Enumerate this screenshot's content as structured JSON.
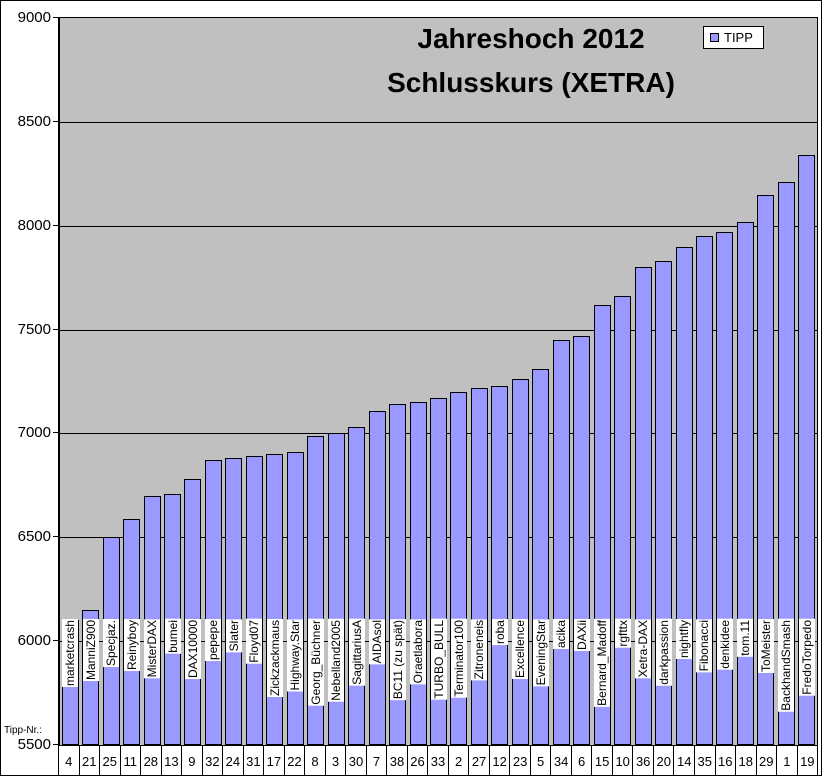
{
  "title": {
    "line1": "Jahreshoch 2012",
    "line2": "Schlusskurs (XETRA)"
  },
  "legend": {
    "label": "TIPP"
  },
  "axis": {
    "caption": "Tipp-Nr.:"
  },
  "colors": {
    "bar": "#9999ff",
    "plot_bg": "#c0c0c0",
    "grid": "#000000",
    "text": "#000000",
    "legend_bg": "#ffffff"
  },
  "chart_data": {
    "type": "bar",
    "title": "Jahreshoch 2012 Schlusskurs (XETRA)",
    "xlabel": "Tipp-Nr.:",
    "ylabel": "",
    "ylim": [
      5500,
      9000
    ],
    "yticks": [
      9000,
      8500,
      8000,
      7500,
      7000,
      6500,
      6000,
      5500
    ],
    "grid": true,
    "legend_position": "top-right",
    "series_name": "TIPP",
    "categories": [
      "marketcrash",
      "ManniZ900",
      "Specjaz.",
      "Reinyboy",
      "MisterDAX",
      "bumei",
      "DAX10000",
      "pepepe",
      "Slater",
      "Floyd07",
      "Zickzackmaus",
      "Highway.Star",
      "Georg_Büchner",
      "Nebelland2005",
      "SagittariusA",
      "AIDAsol",
      "BC11 (zu spät)",
      "Oraetlabora",
      "TURBO_BULL",
      "Terminator100",
      "Zitroneneis",
      "roba",
      "Excellence",
      "EveningStar",
      "acika",
      "DAXii",
      "Bernard_Madoff",
      "rgfttx",
      "Xetra-DAX",
      "darkpassion",
      "nightfly",
      "Fibonacci",
      "denkidee",
      "tom.11",
      "ToMeister",
      "BackhandSmash",
      "FredoTorpedo"
    ],
    "tipp_numbers": [
      4,
      21,
      25,
      11,
      28,
      13,
      9,
      32,
      24,
      31,
      17,
      22,
      8,
      3,
      30,
      7,
      38,
      26,
      33,
      2,
      27,
      12,
      23,
      5,
      34,
      6,
      15,
      10,
      36,
      20,
      14,
      35,
      16,
      18,
      29,
      1,
      19
    ],
    "values": [
      6100,
      6150,
      6500,
      6590,
      6700,
      6710,
      6780,
      6870,
      6880,
      6890,
      6900,
      6910,
      6990,
      7000,
      7030,
      7110,
      7140,
      7150,
      7170,
      7200,
      7220,
      7230,
      7260,
      7310,
      7450,
      7470,
      7620,
      7660,
      7800,
      7830,
      7900,
      7950,
      7970,
      8020,
      8150,
      8210,
      8340
    ]
  }
}
